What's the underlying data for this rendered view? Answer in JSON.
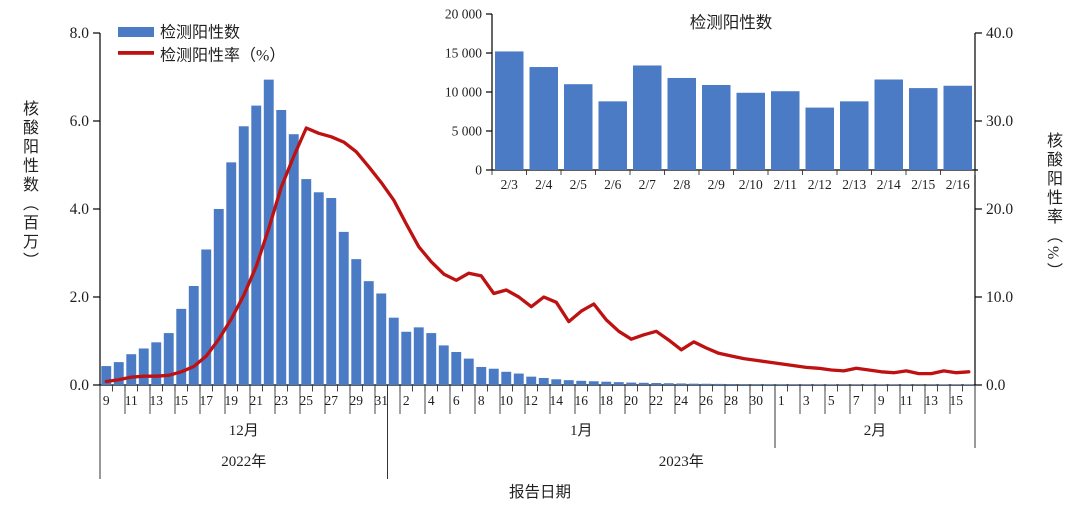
{
  "colors": {
    "bar": "#4A7BC4",
    "line": "#BE1111",
    "axis": "#000000",
    "text": "#1f1f1f",
    "inset_title": "#595959"
  },
  "chart_data": [
    {
      "type": "combo-bar-line",
      "x_axis_title": "报告日期",
      "left_axis": {
        "label": "核酸阳性数（百万）",
        "ticks": [
          "0.0",
          "2.0",
          "4.0",
          "6.0",
          "8.0"
        ],
        "range": [
          0,
          8
        ]
      },
      "right_axis": {
        "label": "核酸阳性率（%）",
        "ticks": [
          "0.0",
          "10.0",
          "20.0",
          "30.0",
          "40.0"
        ],
        "range": [
          0,
          40
        ]
      },
      "legend": [
        {
          "label": "检测阳性数",
          "type": "bar"
        },
        {
          "label": "检测阳性率（%）",
          "type": "line"
        }
      ],
      "months": [
        {
          "label": "12月",
          "days": 23
        },
        {
          "label": "1月",
          "days": 31
        },
        {
          "label": "2月",
          "days": 16
        }
      ],
      "years": [
        {
          "label": "2022年",
          "days": 23
        },
        {
          "label": "2023年",
          "days": 47
        }
      ],
      "day_labels": [
        "9",
        "11",
        "13",
        "15",
        "17",
        "19",
        "21",
        "23",
        "25",
        "27",
        "29",
        "31",
        "2",
        "4",
        "6",
        "8",
        "10",
        "12",
        "14",
        "16",
        "18",
        "20",
        "22",
        "24",
        "26",
        "28",
        "30",
        "1",
        "3",
        "5",
        "7",
        "9",
        "11",
        "13",
        "15"
      ],
      "series": [
        {
          "name": "检测阳性数",
          "type": "bar",
          "axis": "left",
          "unit": "百万",
          "values": [
            0.43,
            0.52,
            0.7,
            0.83,
            0.97,
            1.18,
            1.73,
            2.25,
            3.08,
            4.0,
            5.06,
            5.88,
            6.35,
            6.94,
            6.25,
            5.7,
            4.68,
            4.38,
            4.25,
            3.48,
            2.86,
            2.36,
            2.08,
            1.53,
            1.21,
            1.31,
            1.18,
            0.9,
            0.75,
            0.6,
            0.41,
            0.37,
            0.3,
            0.26,
            0.19,
            0.16,
            0.13,
            0.11,
            0.095,
            0.085,
            0.075,
            0.065,
            0.055,
            0.05,
            0.045,
            0.04,
            0.035,
            0.03,
            0.028,
            0.025,
            0.022,
            0.02,
            0.018,
            0.017,
            0.016,
            0.0155,
            0.0152,
            0.0132,
            0.011,
            0.0088,
            0.0134,
            0.0118,
            0.0109,
            0.0099,
            0.0101,
            0.008,
            0.0088,
            0.0116,
            0.0105,
            0.0108
          ]
        },
        {
          "name": "检测阳性率（%）",
          "type": "line",
          "axis": "right",
          "unit": "%",
          "values": [
            0.4,
            0.6,
            0.9,
            1.0,
            1.0,
            1.1,
            1.5,
            2.1,
            3.3,
            5.2,
            7.5,
            10.2,
            13.5,
            17.8,
            22.5,
            26.0,
            29.2,
            28.6,
            28.2,
            27.6,
            26.5,
            24.8,
            23.0,
            21.0,
            18.3,
            15.7,
            14.0,
            12.6,
            11.9,
            12.7,
            12.4,
            10.4,
            10.8,
            10.0,
            8.9,
            10.0,
            9.4,
            7.2,
            8.4,
            9.2,
            7.4,
            6.1,
            5.2,
            5.7,
            6.1,
            5.1,
            4.0,
            4.9,
            4.2,
            3.6,
            3.3,
            3.0,
            2.8,
            2.6,
            2.4,
            2.2,
            2.0,
            1.9,
            1.7,
            1.6,
            1.9,
            1.7,
            1.5,
            1.4,
            1.6,
            1.3,
            1.3,
            1.6,
            1.4,
            1.5
          ]
        }
      ]
    },
    {
      "type": "bar",
      "title": "检测阳性数",
      "categories": [
        "2/3",
        "2/4",
        "2/5",
        "2/6",
        "2/7",
        "2/8",
        "2/9",
        "2/10",
        "2/11",
        "2/12",
        "2/13",
        "2/14",
        "2/15",
        "2/16"
      ],
      "values": [
        15200,
        13200,
        11000,
        8800,
        13400,
        11800,
        10900,
        9900,
        10100,
        8000,
        8800,
        11600,
        10500,
        10800
      ],
      "y_ticks": [
        "0",
        "5 000",
        "10 000",
        "15 000",
        "20 000"
      ],
      "ylim": [
        0,
        20000
      ],
      "legend_position": "none"
    }
  ]
}
